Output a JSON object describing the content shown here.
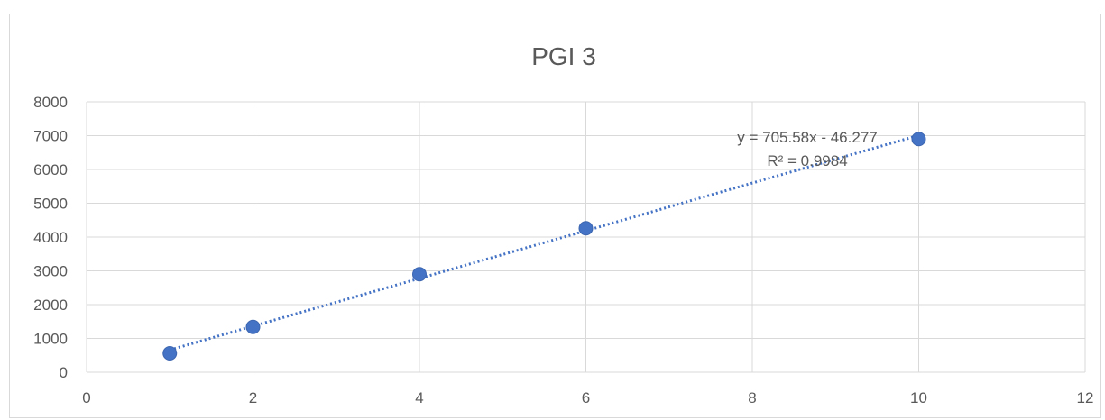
{
  "chart_data": {
    "type": "scatter",
    "title": "PGI 3",
    "xlabel": "",
    "ylabel": "",
    "xlim": [
      0,
      12
    ],
    "ylim": [
      0,
      8000
    ],
    "x_ticks": [
      0,
      2,
      4,
      6,
      8,
      10,
      12
    ],
    "y_ticks": [
      0,
      1000,
      2000,
      3000,
      4000,
      5000,
      6000,
      7000,
      8000
    ],
    "grid": true,
    "legend": "none",
    "series": [
      {
        "x": [
          1,
          2,
          4,
          6,
          10
        ],
        "y": [
          560,
          1340,
          2900,
          4260,
          6900
        ],
        "color": "#4472c4"
      }
    ],
    "trendline": {
      "slope": 705.58,
      "intercept": -46.277,
      "x_range": [
        1,
        10
      ],
      "color": "#4472c4",
      "style": "dotted"
    },
    "annotations": {
      "equation": "y = 705.58x - 46.277",
      "r_squared": "R² = 0.9984"
    },
    "colors": {
      "gridline": "#d9d9d9",
      "text": "#595959"
    }
  }
}
